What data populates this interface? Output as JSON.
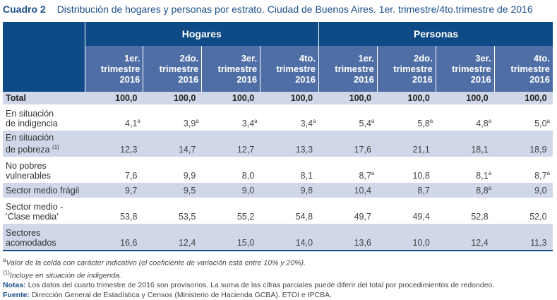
{
  "title": {
    "label": "Cuadro 2",
    "text": "Distribución de hogares y personas por estrato. Ciudad de Buenos Aires. 1er. trimestre/4to.trimestre de 2016"
  },
  "colors": {
    "header_dark": "#0e4a86",
    "header_sub": "#4f6ea6",
    "stripe": "#d0d7e8",
    "title": "#1b4f8c"
  },
  "groups": [
    "Hogares",
    "Personas"
  ],
  "columns": [
    {
      "l1": "1er.",
      "l2": "trimestre",
      "l3": "2016"
    },
    {
      "l1": "2do.",
      "l2": "trimestre",
      "l3": "2016"
    },
    {
      "l1": "3er.",
      "l2": "trimestre",
      "l3": "2016"
    },
    {
      "l1": "4to.",
      "l2": "trimestre",
      "l3": "2016"
    },
    {
      "l1": "1er.",
      "l2": "trimestre",
      "l3": "2016"
    },
    {
      "l1": "2do.",
      "l2": "trimestre",
      "l3": "2016"
    },
    {
      "l1": "3er.",
      "l2": "trimestre",
      "l3": "2016"
    },
    {
      "l1": "4to.",
      "l2": "trimestre",
      "l3": "2016"
    }
  ],
  "rows": [
    {
      "l1": "Total",
      "l2": "",
      "sup": "",
      "values": [
        "100,0",
        "100,0",
        "100,0",
        "100,0",
        "100,0",
        "100,0",
        "100,0",
        "100,0"
      ],
      "marks": [
        "",
        "",
        "",
        "",
        "",
        "",
        "",
        ""
      ]
    },
    {
      "l1": "En situación",
      "l2": "de indigencia",
      "sup": "",
      "values": [
        "4,1",
        "3,9",
        "3,4",
        "3,4",
        "5,4",
        "5,8",
        "4,8",
        "5,0"
      ],
      "marks": [
        "a",
        "a",
        "a",
        "a",
        "a",
        "a",
        "a",
        "a"
      ]
    },
    {
      "l1": "En situación",
      "l2": "de pobreza",
      "sup": "(1)",
      "values": [
        "12,3",
        "14,7",
        "12,7",
        "13,3",
        "17,6",
        "21,1",
        "18,1",
        "18,9"
      ],
      "marks": [
        "",
        "",
        "",
        "",
        "",
        "",
        "",
        ""
      ]
    },
    {
      "l1": "No pobres",
      "l2": "vulnerables",
      "sup": "",
      "values": [
        "7,6",
        "9,9",
        "8,0",
        "8,1",
        "8,7",
        "10,8",
        "8,1",
        "8,7"
      ],
      "marks": [
        "",
        "",
        "",
        "",
        "a",
        "",
        "a",
        "a"
      ]
    },
    {
      "l1": "Sector medio frágil",
      "l2": "",
      "sup": "",
      "values": [
        "9,7",
        "9,5",
        "9,0",
        "9,8",
        "10,4",
        "8,7",
        "8,8",
        "9,0"
      ],
      "marks": [
        "",
        "",
        "",
        "",
        "",
        "",
        "a",
        ""
      ]
    },
    {
      "l1": "Sector medio -",
      "l2": "‘Clase media’",
      "sup": "",
      "values": [
        "53,8",
        "53,5",
        "55,2",
        "54,8",
        "49,7",
        "49,4",
        "52,8",
        "52,0"
      ],
      "marks": [
        "",
        "",
        "",
        "",
        "",
        "",
        "",
        ""
      ]
    },
    {
      "l1": "Sectores",
      "l2": "acomodados",
      "sup": "",
      "values": [
        "16,6",
        "12,4",
        "15,0",
        "14,0",
        "13,6",
        "10,0",
        "12,4",
        "11,3"
      ],
      "marks": [
        "",
        "",
        "",
        "",
        "",
        "",
        "",
        ""
      ]
    }
  ],
  "notes": {
    "a_mark": "a",
    "a_text": "Valor de la celda con carácter indicativo (el coeficiente de variación está entre 10% y 20%).",
    "n1_mark": "(1)",
    "n1_text": "Incluye en situación de indigenda.",
    "notas_label": "Notas:",
    "notas_text": " Los datos del cuarto trimestre de 2016 son provisorios. La suma de las cifras parciales puede diferir del total por procedimientos de redondeo.",
    "fuente_label": "Fuente:",
    "fuente_text": " Dirección General de Estadística y Censos (Ministerio de Hacienda GCBA). ETOI e IPCBA."
  }
}
